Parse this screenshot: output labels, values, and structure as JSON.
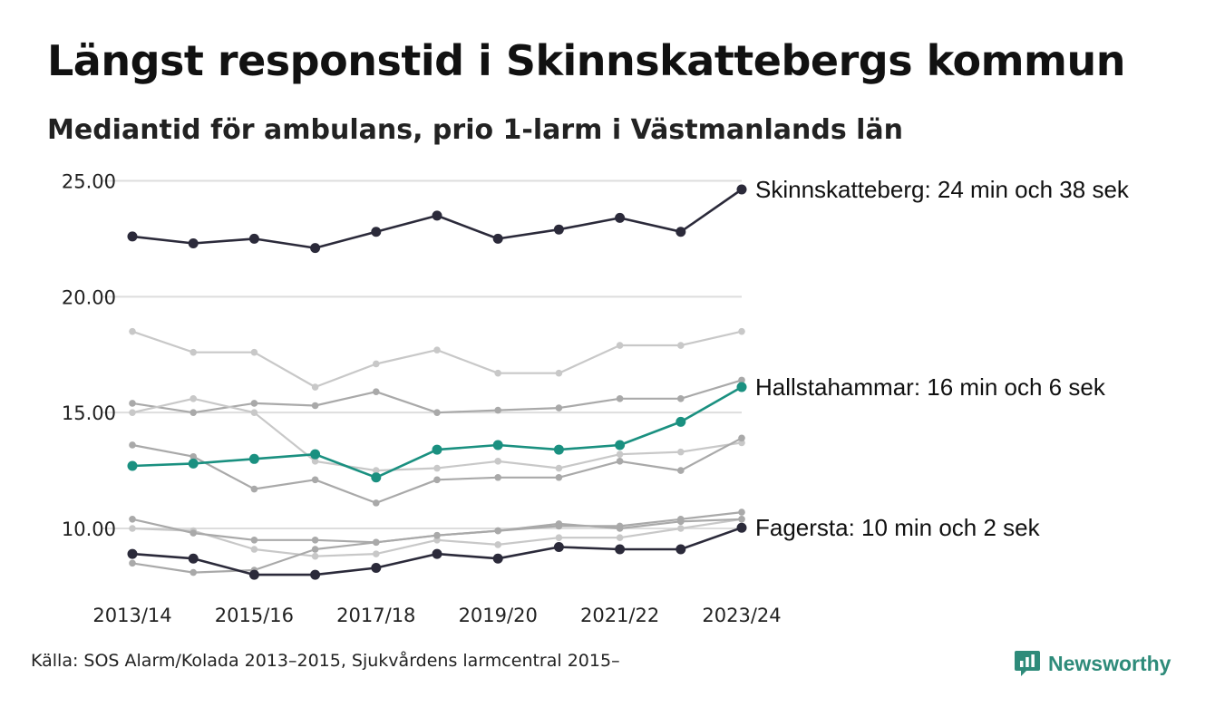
{
  "header": {
    "title": "Längst responstid i Skinnskattebergs kommun",
    "subtitle": "Mediantid för ambulans, prio 1-larm i Västmanlands län"
  },
  "footer": {
    "source": "Källa: SOS Alarm/Kolada 2013–2015, Sjukvårdens larmcentral 2015–",
    "brand": "Newsworthy"
  },
  "colors": {
    "highlight_dark": "#2b2a3a",
    "highlight_teal": "#1a9080",
    "context_light": "#c8c8c8",
    "context_mid": "#a9a9a9",
    "grid": "#dddddd",
    "brand": "#2e8b7a"
  },
  "chart_data": {
    "type": "line",
    "x": [
      "2013/14",
      "2014/15",
      "2015/16",
      "2016/17",
      "2017/18",
      "2018/19",
      "2019/20",
      "2020/21",
      "2021/22",
      "2022/23",
      "2023/24"
    ],
    "x_tick_labels": [
      "2013/14",
      "2015/16",
      "2017/18",
      "2019/20",
      "2021/22",
      "2023/24"
    ],
    "y_ticks": [
      "10.00",
      "15.00",
      "20.00",
      "25.00"
    ],
    "ylim": [
      7.5,
      25.5
    ],
    "grid": true,
    "series": [
      {
        "highlight": false,
        "color": "#c8c8c8",
        "values": [
          18.5,
          17.6,
          17.6,
          16.1,
          17.1,
          17.7,
          16.7,
          16.7,
          17.9,
          17.9,
          18.5
        ]
      },
      {
        "highlight": false,
        "color": "#a9a9a9",
        "values": [
          15.4,
          15.0,
          15.4,
          15.3,
          15.9,
          15.0,
          15.1,
          15.2,
          15.6,
          15.6,
          16.4
        ]
      },
      {
        "highlight": false,
        "color": "#c8c8c8",
        "values": [
          15.0,
          15.6,
          15.0,
          12.9,
          12.5,
          12.6,
          12.9,
          12.6,
          13.2,
          13.3,
          13.7
        ]
      },
      {
        "highlight": false,
        "color": "#a9a9a9",
        "values": [
          13.6,
          13.1,
          11.7,
          12.1,
          11.1,
          12.1,
          12.2,
          12.2,
          12.9,
          12.5,
          13.9
        ]
      },
      {
        "highlight": false,
        "color": "#c8c8c8",
        "values": [
          10.0,
          9.9,
          9.1,
          8.8,
          8.9,
          9.5,
          9.3,
          9.6,
          9.6,
          10.0,
          10.4
        ]
      },
      {
        "highlight": false,
        "color": "#a9a9a9",
        "values": [
          10.4,
          9.8,
          9.5,
          9.5,
          9.4,
          9.7,
          9.9,
          10.1,
          10.1,
          10.4,
          10.7
        ]
      },
      {
        "highlight": false,
        "color": "#a9a9a9",
        "values": [
          8.5,
          8.1,
          8.2,
          9.1,
          9.4,
          9.7,
          9.9,
          10.2,
          10.0,
          10.3,
          10.4
        ]
      },
      {
        "highlight": true,
        "color": "#2b2a3a",
        "values": [
          22.6,
          22.3,
          22.5,
          22.1,
          22.8,
          23.5,
          22.5,
          22.9,
          23.4,
          22.8,
          24.63
        ],
        "label": "Skinnskatteberg: 24 min och 38 sek"
      },
      {
        "highlight": true,
        "color": "#1a9080",
        "values": [
          12.7,
          12.8,
          13.0,
          13.2,
          12.2,
          13.4,
          13.6,
          13.4,
          13.6,
          14.6,
          16.1
        ],
        "label": "Hallstahammar: 16 min och 6 sek"
      },
      {
        "highlight": true,
        "color": "#2b2a3a",
        "values": [
          8.9,
          8.7,
          8.0,
          8.0,
          8.3,
          8.9,
          8.7,
          9.2,
          9.1,
          9.1,
          10.03
        ],
        "label": "Fagersta: 10 min och 2 sek"
      }
    ]
  }
}
